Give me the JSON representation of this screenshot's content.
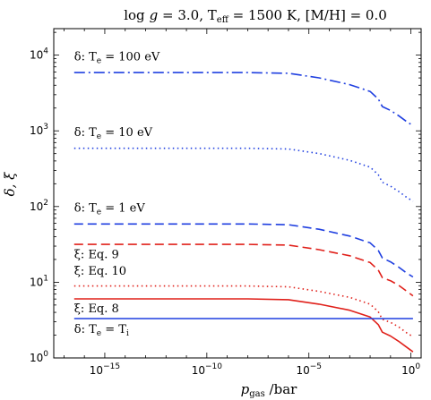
{
  "chart_data": {
    "type": "line",
    "title": "log g = 3.0,  T_eff = 1500 K,  [M/H] = 0.0",
    "title_parts": [
      "log",
      "g",
      " = 3.0,  T",
      "eff",
      " = 1500 K,  [M/H] = 0.0"
    ],
    "xlabel": "p_gas / bar",
    "xlabel_parts": [
      "p",
      "gas",
      " /bar"
    ],
    "ylabel": "δ, ξ",
    "xscale": "log",
    "yscale": "log",
    "xlim_exp": [
      -17.5,
      0.5
    ],
    "ylim_exp": [
      0,
      4.35
    ],
    "xticks": [
      {
        "exp": -15,
        "base": "10",
        "sup": "−15"
      },
      {
        "exp": -10,
        "base": "10",
        "sup": "−10"
      },
      {
        "exp": -5,
        "base": "10",
        "sup": "−5"
      },
      {
        "exp": 0,
        "base": "10",
        "sup": "0"
      }
    ],
    "yticks": [
      {
        "exp": 0,
        "base": "10",
        "sup": "0"
      },
      {
        "exp": 1,
        "base": "10",
        "sup": "1"
      },
      {
        "exp": 2,
        "base": "10",
        "sup": "2"
      },
      {
        "exp": 3,
        "base": "10",
        "sup": "3"
      },
      {
        "exp": 4,
        "base": "10",
        "sup": "4"
      }
    ],
    "grid": false,
    "series": [
      {
        "name": "δ: T_e = 100 eV",
        "color": "#1f3fe0",
        "dash": "dashdot",
        "x_exp": [
          -16.5,
          -12,
          -8,
          -6,
          -4.5,
          -3,
          -2,
          -1.6,
          -1.4,
          -1.0,
          -0.6,
          -0.2,
          0.1
        ],
        "y_exp": [
          3.77,
          3.77,
          3.77,
          3.76,
          3.7,
          3.61,
          3.52,
          3.42,
          3.32,
          3.27,
          3.2,
          3.12,
          3.07
        ]
      },
      {
        "name": "δ: T_e = 10 eV",
        "color": "#1f3fe0",
        "dash": "dotted",
        "x_exp": [
          -16.5,
          -12,
          -8,
          -6,
          -4.5,
          -3,
          -2,
          -1.6,
          -1.4,
          -1.0,
          -0.6,
          -0.2,
          0.1
        ],
        "y_exp": [
          2.77,
          2.77,
          2.77,
          2.76,
          2.7,
          2.61,
          2.52,
          2.42,
          2.32,
          2.27,
          2.2,
          2.12,
          2.07
        ]
      },
      {
        "name": "δ: T_e = 1 eV",
        "color": "#1f3fe0",
        "dash": "dashed",
        "x_exp": [
          -16.5,
          -12,
          -8,
          -6,
          -4.5,
          -3,
          -2,
          -1.6,
          -1.4,
          -1.0,
          -0.6,
          -0.2,
          0.1
        ],
        "y_exp": [
          1.77,
          1.77,
          1.77,
          1.76,
          1.7,
          1.61,
          1.52,
          1.42,
          1.32,
          1.27,
          1.2,
          1.12,
          1.07
        ]
      },
      {
        "name": "ξ: Eq. 9",
        "color": "#e0201a",
        "dash": "dashed",
        "x_exp": [
          -16.5,
          -12,
          -8,
          -6,
          -4.5,
          -3,
          -2,
          -1.6,
          -1.4,
          -1.0,
          -0.6,
          -0.2,
          0.1
        ],
        "y_exp": [
          1.5,
          1.5,
          1.5,
          1.49,
          1.43,
          1.35,
          1.26,
          1.16,
          1.06,
          1.02,
          0.96,
          0.88,
          0.82
        ]
      },
      {
        "name": "ξ: Eq. 10",
        "color": "#e0201a",
        "dash": "dotted",
        "x_exp": [
          -16.5,
          -12,
          -8,
          -6,
          -4.5,
          -3,
          -2,
          -1.6,
          -1.4,
          -1.0,
          -0.6,
          -0.2,
          0.1
        ],
        "y_exp": [
          0.95,
          0.95,
          0.95,
          0.94,
          0.88,
          0.8,
          0.71,
          0.61,
          0.51,
          0.47,
          0.41,
          0.33,
          0.28
        ]
      },
      {
        "name": "ξ: Eq. 8",
        "color": "#e0201a",
        "dash": "solid",
        "x_exp": [
          -16.5,
          -12,
          -8,
          -6,
          -4.5,
          -3,
          -2,
          -1.6,
          -1.4,
          -1.0,
          -0.6,
          -0.2,
          0.1
        ],
        "y_exp": [
          0.78,
          0.78,
          0.78,
          0.77,
          0.71,
          0.63,
          0.54,
          0.44,
          0.34,
          0.29,
          0.22,
          0.14,
          0.08
        ]
      },
      {
        "name": "δ: T_e = T_i",
        "color": "#1f3fe0",
        "dash": "solid",
        "x_exp": [
          -16.5,
          0.1
        ],
        "y_exp": [
          0.52,
          0.52
        ]
      }
    ],
    "annotations": [
      {
        "parts": [
          "δ: T",
          "e",
          " = 100 eV"
        ],
        "x_exp": -16.5,
        "y_exp": 3.93
      },
      {
        "parts": [
          "δ: T",
          "e",
          " = 10 eV"
        ],
        "x_exp": -16.5,
        "y_exp": 2.93
      },
      {
        "parts": [
          "δ: T",
          "e",
          " = 1 eV"
        ],
        "x_exp": -16.5,
        "y_exp": 1.93
      },
      {
        "parts": [
          "ξ: Eq. 9",
          "",
          ""
        ],
        "x_exp": -16.5,
        "y_exp": 1.32
      },
      {
        "parts": [
          "ξ: Eq. 10",
          "",
          ""
        ],
        "x_exp": -16.5,
        "y_exp": 1.1
      },
      {
        "parts": [
          "ξ: Eq. 8",
          "",
          ""
        ],
        "x_exp": -16.5,
        "y_exp": 0.6
      },
      {
        "parts": [
          "δ: T",
          "e",
          " = T"
        ],
        "x_exp": -16.5,
        "y_exp": 0.33,
        "tail_sub": "i"
      }
    ]
  }
}
